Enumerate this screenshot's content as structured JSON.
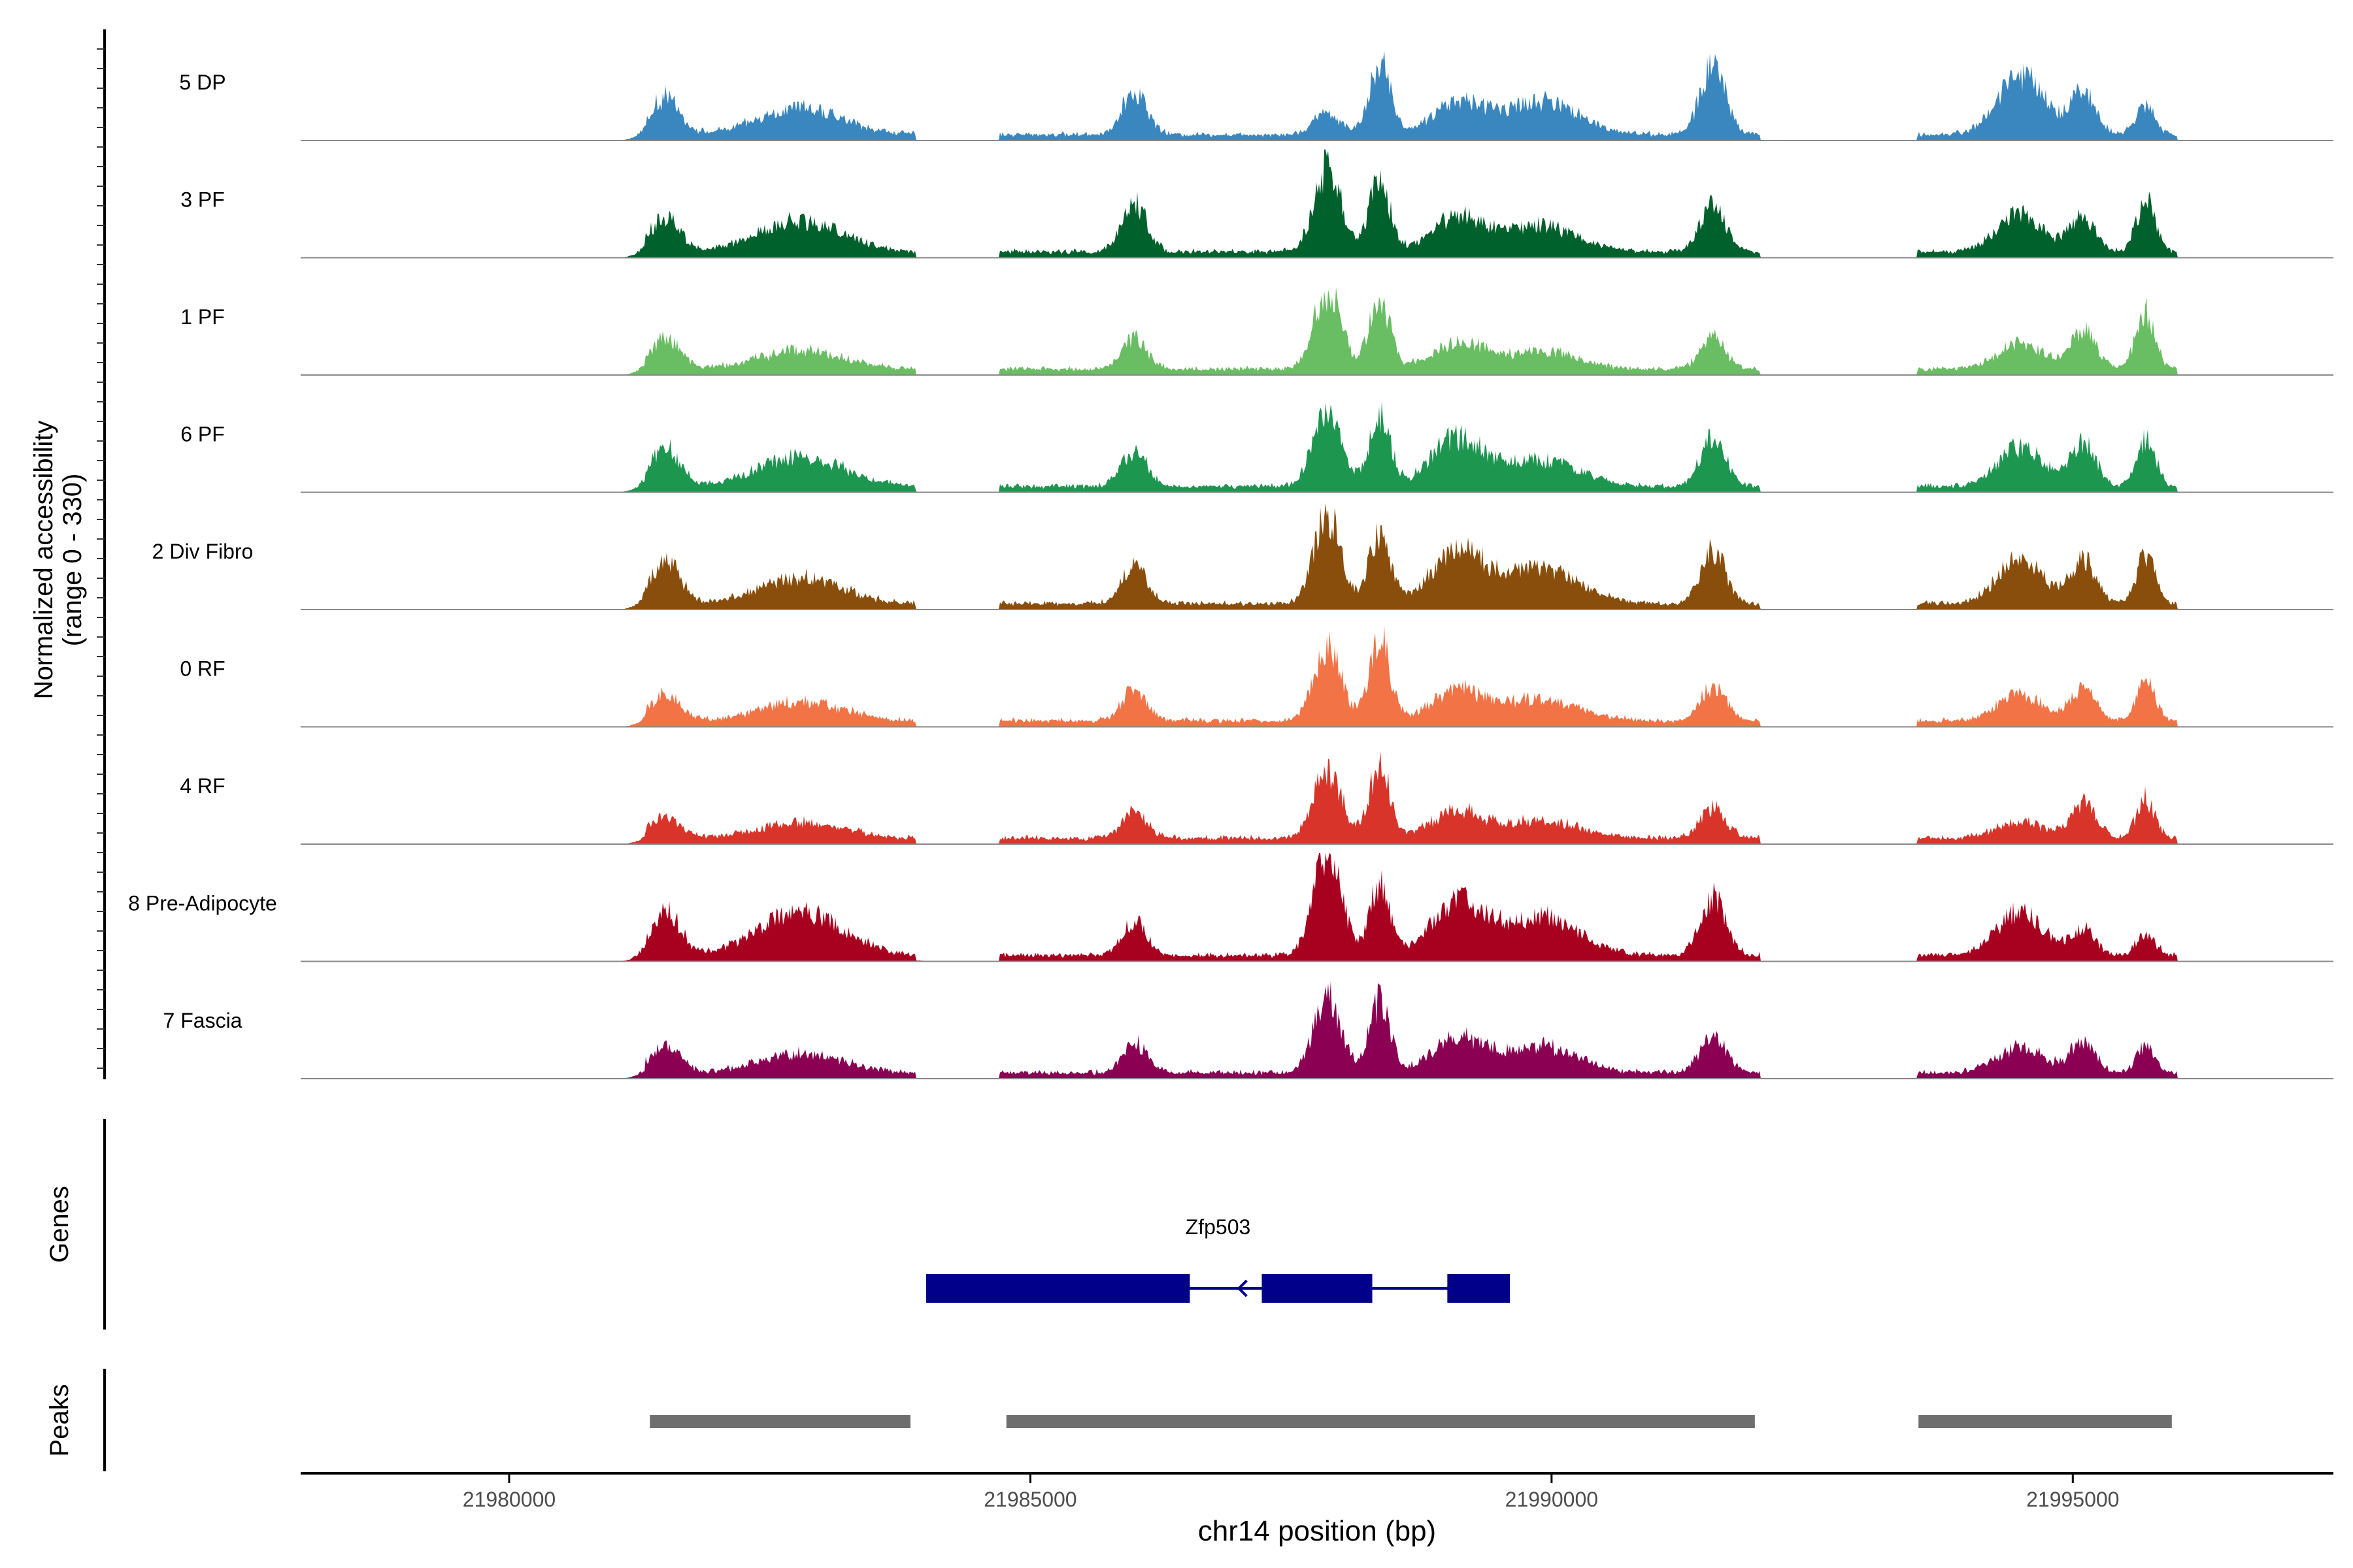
{
  "chart_data": {
    "type": "area",
    "title": "",
    "ylabel_line1": "Normalized accessibility",
    "ylabel_line2": "(range 0 - 330)",
    "xlabel": "chr14 position (bp)",
    "y_range": [
      0,
      330
    ],
    "x_range": [
      21978000,
      21997500
    ],
    "x_ticks": [
      21980000,
      21985000,
      21990000,
      21995000
    ],
    "x_tick_labels": [
      "21980000",
      "21985000",
      "21990000",
      "21995000"
    ],
    "tracks": [
      {
        "label": "5 DP",
        "color": "#3a87c0",
        "heights": [
          0.42,
          0.3,
          0.5,
          0.25,
          0.85,
          0.35,
          0.38,
          0.8,
          0.7,
          0.5,
          0.35
        ]
      },
      {
        "label": "3 PF",
        "color": "#00612c",
        "heights": [
          0.4,
          0.35,
          0.55,
          0.95,
          0.8,
          0.4,
          0.3,
          0.55,
          0.45,
          0.4,
          0.6
        ]
      },
      {
        "label": "1 PF",
        "color": "#69bd62",
        "heights": [
          0.35,
          0.22,
          0.35,
          0.9,
          0.8,
          0.3,
          0.2,
          0.35,
          0.3,
          0.45,
          0.65
        ]
      },
      {
        "label": "6 PF",
        "color": "#1d9650",
        "heights": [
          0.45,
          0.35,
          0.4,
          0.95,
          0.8,
          0.55,
          0.3,
          0.55,
          0.45,
          0.5,
          0.55
        ]
      },
      {
        "label": "2 Div Fibro",
        "color": "#8a4e0c",
        "heights": [
          0.5,
          0.3,
          0.45,
          1.0,
          0.85,
          0.6,
          0.4,
          0.6,
          0.5,
          0.5,
          0.55
        ]
      },
      {
        "label": "0 RF",
        "color": "#f27346",
        "heights": [
          0.3,
          0.22,
          0.35,
          0.85,
          0.95,
          0.35,
          0.25,
          0.4,
          0.3,
          0.35,
          0.45
        ]
      },
      {
        "label": "4 RF",
        "color": "#d93429",
        "heights": [
          0.25,
          0.18,
          0.3,
          0.8,
          0.85,
          0.3,
          0.2,
          0.35,
          0.2,
          0.4,
          0.45
        ]
      },
      {
        "label": "8 Pre-Adipocyte",
        "color": "#a8001f",
        "heights": [
          0.5,
          0.5,
          0.4,
          1.2,
          0.8,
          0.6,
          0.45,
          0.65,
          0.5,
          0.3,
          0.25
        ]
      },
      {
        "label": "7 Fascia",
        "color": "#8b0052",
        "heights": [
          0.3,
          0.22,
          0.35,
          0.85,
          0.8,
          0.4,
          0.3,
          0.45,
          0.3,
          0.35,
          0.3
        ]
      }
    ],
    "genes": {
      "track_label": "Genes",
      "name": "Zfp503",
      "strand": "-",
      "span": [
        21984000,
        21989600
      ],
      "exons": [
        [
          21984000,
          21986530
        ],
        [
          21987220,
          21988280
        ],
        [
          21989000,
          21989600
        ]
      ],
      "color": "#00008b"
    },
    "peaks": {
      "track_label": "Peaks",
      "intervals": [
        [
          21981350,
          21983850
        ],
        [
          21984770,
          21991950
        ],
        [
          21993520,
          21995950
        ]
      ],
      "color": "#6e6e6e"
    }
  }
}
